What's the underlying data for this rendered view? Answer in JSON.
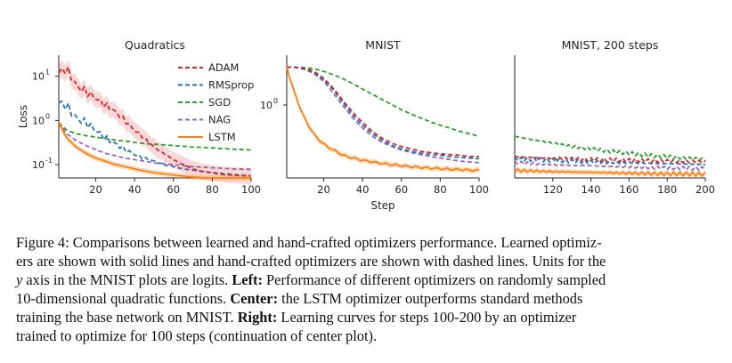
{
  "figure": {
    "panels": [
      {
        "title": "Quadratics",
        "ylabel": "Loss",
        "xlabel": "",
        "xticks": [
          "20",
          "40",
          "60",
          "80",
          "100"
        ],
        "yticks": [
          "10",
          "10",
          "10"
        ],
        "ytick_exp": [
          "1",
          "0",
          "-1"
        ]
      },
      {
        "title": "MNIST",
        "ylabel": "",
        "xlabel": "Step",
        "xticks": [
          "20",
          "40",
          "60",
          "80",
          "100"
        ],
        "yticks": [
          "10"
        ],
        "ytick_exp": [
          "0"
        ]
      },
      {
        "title": "MNIST, 200 steps",
        "ylabel": "",
        "xlabel": "",
        "xticks": [
          "120",
          "140",
          "160",
          "180",
          "200"
        ],
        "yticks": [],
        "ytick_exp": []
      }
    ],
    "legend": [
      {
        "name": "ADAM",
        "color": "#d62728",
        "dashed": true
      },
      {
        "name": "RMSprop",
        "color": "#1f77b4",
        "dashed": true
      },
      {
        "name": "SGD",
        "color": "#2ca02c",
        "dashed": true
      },
      {
        "name": "NAG",
        "color": "#9467bd",
        "dashed": true
      },
      {
        "name": "LSTM",
        "color": "#ff7f0e",
        "dashed": false
      }
    ]
  },
  "caption": {
    "l1a": "Figure 4: Comparisons between learned and hand-crafted optimizers performance. Learned optimiz-",
    "l2a": "ers are shown with solid lines and hand-crafted optimizers are shown with dashed lines. Units for the",
    "l3var": "y",
    "l3a": " axis in the MNIST plots are logits. ",
    "l3b": "Left:",
    "l3c": " Performance of different optimizers on randomly sampled",
    "l4a": "10-dimensional quadratic functions. ",
    "l4b": "Center:",
    "l4c": " the LSTM optimizer outperforms standard methods",
    "l5a": "training the base network on MNIST. ",
    "l5b": "Right:",
    "l5c": " Learning curves for steps 100-200 by an optimizer",
    "l6a": "trained to optimize for 100 steps (continuation of center plot)."
  },
  "chart_data": [
    {
      "type": "line",
      "title": "Quadratics",
      "xlabel": "",
      "ylabel": "Loss",
      "yscale": "log",
      "xlim": [
        1,
        100
      ],
      "ylim": [
        0.05,
        30
      ],
      "x": [
        1,
        5,
        10,
        15,
        20,
        25,
        30,
        35,
        40,
        45,
        50,
        55,
        60,
        65,
        70,
        75,
        80,
        85,
        90,
        95,
        100
      ],
      "series": [
        {
          "name": "ADAM",
          "values": [
            12,
            15,
            6,
            4.5,
            3.2,
            2.2,
            1.6,
            1.0,
            0.6,
            0.4,
            0.25,
            0.18,
            0.13,
            0.1,
            0.08,
            0.07,
            0.065,
            0.06,
            0.058,
            0.056,
            0.055
          ]
        },
        {
          "name": "RMSprop",
          "values": [
            2.5,
            2.2,
            1.1,
            0.9,
            0.6,
            0.4,
            0.3,
            0.22,
            0.17,
            0.14,
            0.12,
            0.1,
            0.09,
            0.08,
            0.075,
            0.07,
            0.066,
            0.063,
            0.06,
            0.058,
            0.056
          ]
        },
        {
          "name": "SGD",
          "values": [
            0.9,
            0.6,
            0.5,
            0.45,
            0.42,
            0.39,
            0.36,
            0.34,
            0.32,
            0.3,
            0.29,
            0.28,
            0.27,
            0.26,
            0.25,
            0.245,
            0.24,
            0.23,
            0.225,
            0.22,
            0.215
          ]
        },
        {
          "name": "NAG",
          "values": [
            0.9,
            0.5,
            0.35,
            0.27,
            0.22,
            0.18,
            0.16,
            0.14,
            0.13,
            0.12,
            0.11,
            0.105,
            0.1,
            0.095,
            0.09,
            0.088,
            0.085,
            0.083,
            0.08,
            0.079,
            0.078
          ]
        },
        {
          "name": "LSTM",
          "values": [
            0.9,
            0.4,
            0.25,
            0.18,
            0.14,
            0.12,
            0.1,
            0.09,
            0.08,
            0.072,
            0.066,
            0.062,
            0.058,
            0.055,
            0.052,
            0.05,
            0.048,
            0.046,
            0.045,
            0.044,
            0.043
          ]
        }
      ]
    },
    {
      "type": "line",
      "title": "MNIST",
      "xlabel": "Step",
      "ylabel": "",
      "yscale": "log",
      "xlim": [
        1,
        100
      ],
      "ylim": [
        0.2,
        3.0
      ],
      "x": [
        1,
        5,
        10,
        15,
        20,
        25,
        30,
        35,
        40,
        45,
        50,
        55,
        60,
        65,
        70,
        75,
        80,
        85,
        90,
        95,
        100
      ],
      "series": [
        {
          "name": "ADAM",
          "values": [
            2.3,
            2.3,
            2.25,
            2.1,
            1.8,
            1.45,
            1.1,
            0.85,
            0.68,
            0.56,
            0.48,
            0.43,
            0.4,
            0.38,
            0.36,
            0.35,
            0.34,
            0.335,
            0.33,
            0.32,
            0.32
          ]
        },
        {
          "name": "RMSprop",
          "values": [
            2.3,
            2.3,
            2.22,
            2.05,
            1.75,
            1.4,
            1.05,
            0.8,
            0.64,
            0.53,
            0.46,
            0.41,
            0.38,
            0.36,
            0.345,
            0.335,
            0.33,
            0.32,
            0.315,
            0.31,
            0.305
          ]
        },
        {
          "name": "SGD",
          "values": [
            2.3,
            2.3,
            2.28,
            2.22,
            2.1,
            1.95,
            1.78,
            1.6,
            1.42,
            1.27,
            1.13,
            1.01,
            0.9,
            0.82,
            0.75,
            0.69,
            0.64,
            0.6,
            0.56,
            0.53,
            0.5
          ]
        },
        {
          "name": "NAG",
          "values": [
            2.3,
            2.3,
            2.2,
            2.0,
            1.68,
            1.3,
            0.98,
            0.75,
            0.6,
            0.5,
            0.44,
            0.4,
            0.37,
            0.35,
            0.335,
            0.32,
            0.31,
            0.3,
            0.29,
            0.285,
            0.28
          ]
        },
        {
          "name": "LSTM",
          "values": [
            2.3,
            1.3,
            0.75,
            0.52,
            0.42,
            0.37,
            0.33,
            0.31,
            0.295,
            0.285,
            0.275,
            0.268,
            0.262,
            0.256,
            0.252,
            0.248,
            0.245,
            0.242,
            0.24,
            0.238,
            0.236
          ]
        }
      ]
    },
    {
      "type": "line",
      "title": "MNIST, 200 steps",
      "xlabel": "",
      "ylabel": "",
      "yscale": "log",
      "xlim": [
        100,
        200
      ],
      "ylim": [
        0.2,
        3.0
      ],
      "x": [
        100,
        110,
        120,
        130,
        140,
        150,
        160,
        170,
        180,
        190,
        200
      ],
      "series": [
        {
          "name": "ADAM",
          "values": [
            0.32,
            0.315,
            0.31,
            0.305,
            0.3,
            0.298,
            0.295,
            0.293,
            0.29,
            0.288,
            0.286
          ]
        },
        {
          "name": "RMSprop",
          "values": [
            0.305,
            0.3,
            0.295,
            0.29,
            0.285,
            0.282,
            0.28,
            0.277,
            0.275,
            0.273,
            0.272
          ]
        },
        {
          "name": "SGD",
          "values": [
            0.5,
            0.46,
            0.43,
            0.4,
            0.38,
            0.36,
            0.345,
            0.33,
            0.32,
            0.31,
            0.3
          ]
        },
        {
          "name": "NAG",
          "values": [
            0.28,
            0.275,
            0.27,
            0.265,
            0.262,
            0.258,
            0.255,
            0.252,
            0.25,
            0.248,
            0.246
          ]
        },
        {
          "name": "LSTM",
          "values": [
            0.236,
            0.233,
            0.23,
            0.228,
            0.226,
            0.224,
            0.222,
            0.22,
            0.219,
            0.218,
            0.217
          ]
        }
      ]
    }
  ]
}
